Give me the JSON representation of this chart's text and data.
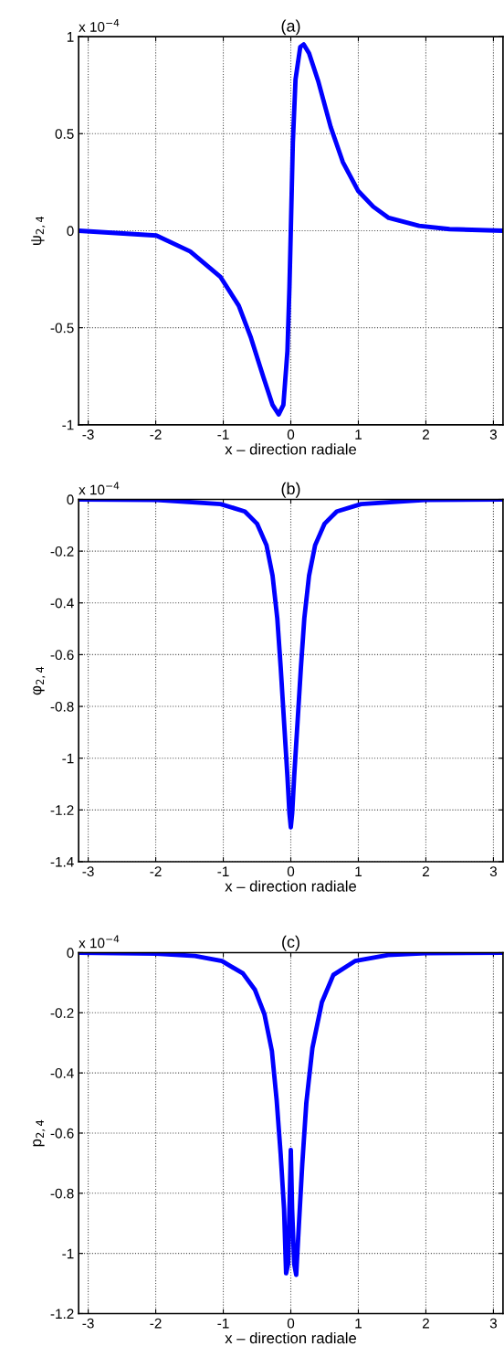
{
  "chart_data": [
    {
      "type": "line",
      "title": "(a)",
      "xlabel": "x – direction radiale",
      "ylabel": "ψ$_{2,4}$",
      "annotations": [
        "x 10$^{−4}$"
      ],
      "grid": true,
      "line_style": "solid",
      "x": [
        -3.14,
        -1.99,
        -1.49,
        -1.04,
        -0.77,
        -0.59,
        -0.41,
        -0.27,
        -0.18,
        -0.11,
        -0.05,
        -0.02,
        0,
        0.03,
        0.07,
        0.14,
        0.19,
        0.27,
        0.41,
        0.59,
        0.77,
        0.995,
        1.22,
        1.45,
        1.9,
        2.35,
        3.14
      ],
      "series": [
        {
          "color": "#0000ff",
          "values": [
            0,
            -0.025,
            -0.107,
            -0.239,
            -0.387,
            -0.552,
            -0.75,
            -0.898,
            -0.947,
            -0.898,
            -0.62,
            -0.29,
            0,
            0.45,
            0.78,
            0.947,
            0.96,
            0.914,
            0.766,
            0.535,
            0.354,
            0.206,
            0.124,
            0.066,
            0.025,
            0.008,
            0
          ]
        }
      ],
      "xlim": [
        -3.1416,
        3.1416
      ],
      "ylim": [
        -1,
        1
      ],
      "xticks": [
        -3,
        -2,
        -1,
        0,
        1,
        2,
        3
      ],
      "yticks": [
        -1,
        -0.5,
        0,
        0.5,
        1
      ]
    },
    {
      "type": "line",
      "title": "(b)",
      "xlabel": "x – direction radiale",
      "ylabel": "φ$_{2,4}$",
      "annotations": [
        "x 10$^{−4}$"
      ],
      "grid": true,
      "line_style": "solid",
      "x": [
        -3.14,
        -1.99,
        -1.04,
        -0.68,
        -0.5,
        -0.36,
        -0.27,
        -0.2,
        -0.15,
        -0.1,
        -0.05,
        -0.02,
        0,
        0.02,
        0.05,
        0.1,
        0.15,
        0.2,
        0.27,
        0.36,
        0.5,
        0.68,
        1.04,
        1.99,
        3.14
      ],
      "series": [
        {
          "color": "#0000ff",
          "values": [
            0,
            -0.002,
            -0.018,
            -0.047,
            -0.094,
            -0.177,
            -0.295,
            -0.46,
            -0.648,
            -0.86,
            -1.07,
            -1.214,
            -1.267,
            -1.214,
            -1.07,
            -0.86,
            -0.648,
            -0.46,
            -0.295,
            -0.177,
            -0.094,
            -0.047,
            -0.018,
            -0.002,
            0
          ]
        }
      ],
      "xlim": [
        -3.1416,
        3.1416
      ],
      "ylim": [
        -1.4,
        0
      ],
      "xticks": [
        -3,
        -2,
        -1,
        0,
        1,
        2,
        3
      ],
      "yticks": [
        -1.4,
        -1.2,
        -1,
        -0.8,
        -0.6,
        -0.4,
        -0.2,
        0
      ]
    },
    {
      "type": "line",
      "title": "(c)",
      "xlabel": "x – direction radiale",
      "ylabel": "p$_{2,4}$",
      "annotations": [
        "x 10$^{−4}$"
      ],
      "grid": true,
      "line_style": "solid",
      "x": [
        -3.14,
        -2.0,
        -1.42,
        -1.02,
        -0.71,
        -0.53,
        -0.39,
        -0.28,
        -0.21,
        -0.15,
        -0.1,
        -0.07,
        -0.04,
        -0.02,
        0,
        0.02,
        0.05,
        0.08,
        0.12,
        0.17,
        0.23,
        0.32,
        0.46,
        0.63,
        0.95,
        1.44,
        2.0,
        3.14
      ],
      "series": [
        {
          "color": "#0000ff",
          "values": [
            0,
            -0.003,
            -0.011,
            -0.028,
            -0.069,
            -0.124,
            -0.205,
            -0.327,
            -0.489,
            -0.671,
            -0.853,
            -1.066,
            -1.035,
            -0.853,
            -0.656,
            -0.853,
            -1.035,
            -1.071,
            -0.904,
            -0.702,
            -0.499,
            -0.317,
            -0.165,
            -0.074,
            -0.028,
            -0.008,
            -0.002,
            0
          ]
        }
      ],
      "xlim": [
        -3.1416,
        3.1416
      ],
      "ylim": [
        -1.2,
        0
      ],
      "xticks": [
        -3,
        -2,
        -1,
        0,
        1,
        2,
        3
      ],
      "yticks": [
        -1.2,
        -1,
        -0.8,
        -0.6,
        -0.4,
        -0.2,
        0
      ]
    }
  ]
}
